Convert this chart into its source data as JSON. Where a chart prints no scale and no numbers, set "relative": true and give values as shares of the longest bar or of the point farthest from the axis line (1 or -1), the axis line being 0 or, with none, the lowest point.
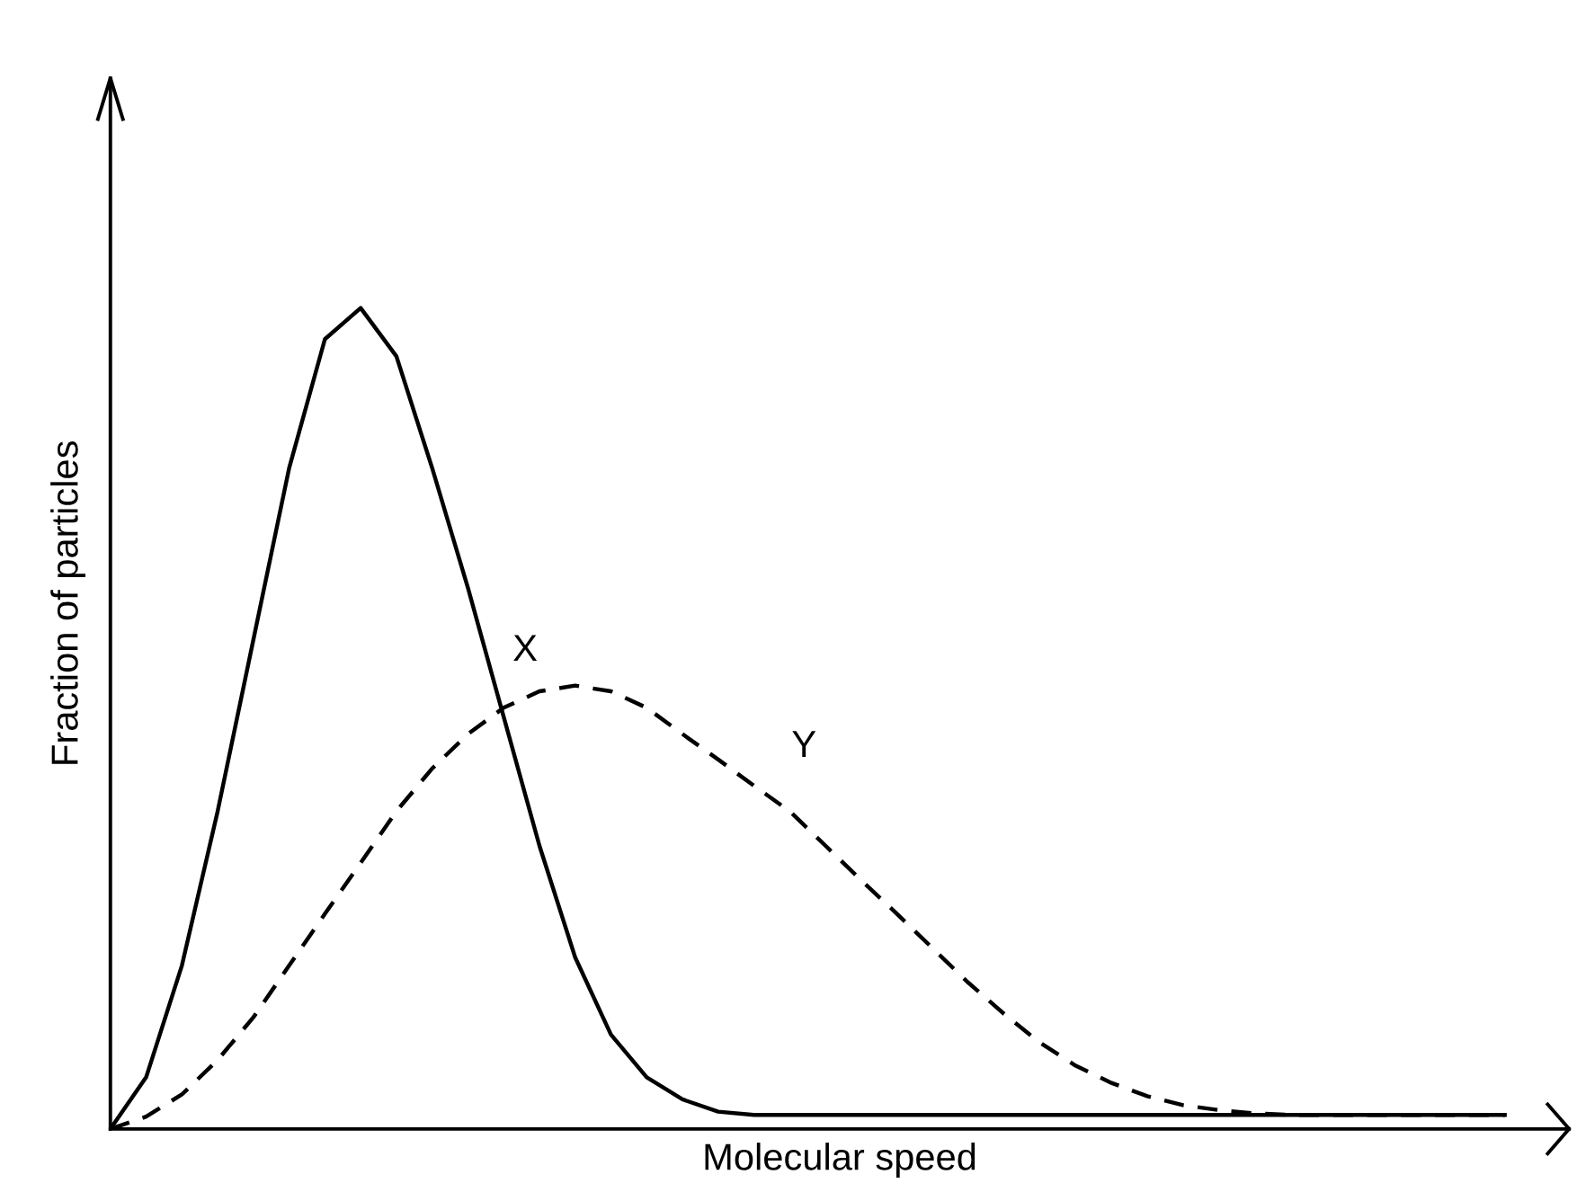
{
  "chart_data": {
    "type": "line",
    "xlabel": "Molecular speed",
    "ylabel": "Fraction of particles",
    "relative": true,
    "legend": false,
    "grid": false,
    "categories": [
      null,
      null,
      null,
      null,
      null,
      null,
      null,
      null,
      null,
      null,
      null,
      null,
      null,
      null,
      null,
      null,
      null,
      null,
      null,
      null,
      null,
      null,
      null,
      null,
      null,
      null,
      null,
      null,
      null,
      null,
      null,
      null,
      null,
      null,
      null,
      null,
      null,
      null,
      null,
      null
    ],
    "series": [
      {
        "name": "X",
        "color": "#000000",
        "line_style": "solid",
        "values": [
          0,
          0.063,
          0.199,
          0.387,
          0.596,
          0.805,
          0.962,
          1.0,
          0.941,
          0.805,
          0.659,
          0.502,
          0.345,
          0.209,
          0.115,
          0.063,
          0.036,
          0.021,
          0.017,
          0.017,
          0.017,
          0.017,
          0.017,
          0.017,
          0.017,
          0.017,
          0.017,
          0.017,
          0.017,
          0.017,
          0.017,
          0.017,
          0.017,
          0.017,
          0.017,
          0.017,
          0.017,
          0.017,
          0.017,
          0.017
        ]
      },
      {
        "name": "Y",
        "color": "#000000",
        "line_style": "dashed",
        "values": [
          0,
          0.015,
          0.042,
          0.084,
          0.136,
          0.199,
          0.262,
          0.324,
          0.387,
          0.439,
          0.481,
          0.513,
          0.533,
          0.54,
          0.533,
          0.513,
          0.481,
          0.45,
          0.418,
          0.387,
          0.345,
          0.303,
          0.262,
          0.22,
          0.178,
          0.14,
          0.105,
          0.077,
          0.056,
          0.04,
          0.029,
          0.023,
          0.019,
          0.017,
          0.017,
          0.017,
          0.017,
          0.017,
          0.017,
          0.017
        ]
      }
    ]
  }
}
